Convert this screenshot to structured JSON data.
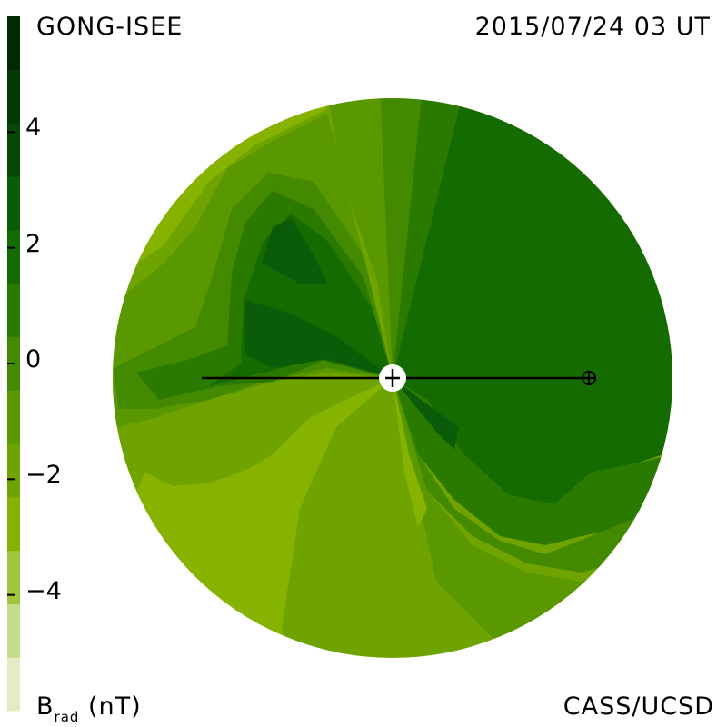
{
  "header": {
    "source": "GONG-ISEE",
    "datetime": "2015/07/24 03 UT"
  },
  "footer": {
    "organization": "CASS/UCSD",
    "unit_symbol": "B",
    "unit_subscript": "rad",
    "unit": "(nT)"
  },
  "colorbar": {
    "ticks": [
      "4",
      "2",
      "0",
      "−2",
      "−4"
    ],
    "tick_values": [
      4,
      2,
      0,
      -2,
      -4
    ],
    "range": [
      -6,
      6
    ],
    "colors": [
      "#e3ecc5",
      "#c5dd8a",
      "#9fc63c",
      "#85b300",
      "#6fa300",
      "#5a9800",
      "#448a00",
      "#2a7a00",
      "#146c00",
      "#0a5c08",
      "#064806",
      "#033a03",
      "#022a02"
    ]
  },
  "map_colors": {
    "level_-4": "#9fc63c",
    "level_-3": "#85b300",
    "level_-2": "#6fa300",
    "level_-1": "#5a9800",
    "level_0": "#448a00",
    "level_1": "#2a7a00",
    "level_2": "#146c00",
    "level_3": "#0a5c08",
    "level_4": "#064806"
  },
  "markers": {
    "sun_icon": "sun-center-icon",
    "earth_icon": "earth-icon"
  }
}
